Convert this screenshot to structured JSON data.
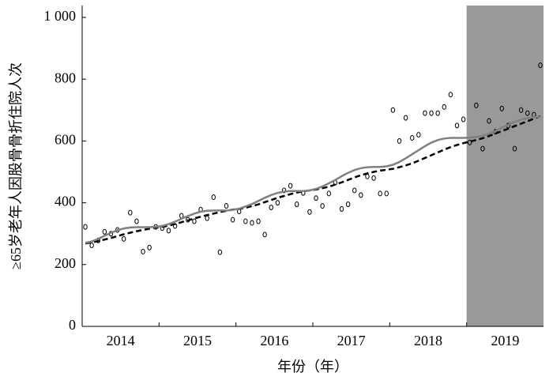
{
  "chart_data": {
    "type": "line",
    "ylabel": "≥65岁老年人因股骨骨折住院人次",
    "xlabel": "年份（年）",
    "categories": [
      null,
      null,
      null,
      null,
      null,
      null,
      "2014",
      null,
      null,
      null,
      null,
      null,
      null,
      null,
      null,
      null,
      null,
      null,
      "2015",
      null,
      null,
      null,
      null,
      null,
      null,
      null,
      null,
      null,
      null,
      null,
      "2016",
      null,
      null,
      null,
      null,
      null,
      null,
      null,
      null,
      null,
      null,
      null,
      "2017",
      null,
      null,
      null,
      null,
      null,
      null,
      null,
      null,
      null,
      null,
      null,
      "2018",
      null,
      null,
      null,
      null,
      null,
      null,
      null,
      null,
      null,
      null,
      null,
      "2019",
      null,
      null,
      null,
      null,
      null
    ],
    "ylim": [
      0,
      1000
    ],
    "yticks": [
      0,
      200,
      400,
      600,
      800,
      {
        "value": 1000,
        "label": "1 000"
      }
    ],
    "shaded_range": [
      60,
      71
    ],
    "shade_color": "#999999",
    "series": [
      {
        "style": "markers",
        "color": "#000000",
        "values": [
          322,
          262,
          278,
          306,
          300,
          312,
          283,
          368,
          340,
          242,
          255,
          322,
          318,
          310,
          325,
          358,
          345,
          340,
          378,
          350,
          418,
          240,
          390,
          345,
          372,
          340,
          335,
          340,
          297,
          385,
          400,
          440,
          455,
          395,
          432,
          370,
          415,
          390,
          430,
          465,
          380,
          395,
          440,
          425,
          485,
          480,
          430,
          430,
          700,
          600,
          675,
          610,
          620,
          690,
          690,
          690,
          710,
          750,
          650,
          670,
          595,
          715,
          575,
          665,
          630,
          705,
          650,
          575,
          700,
          690,
          685,
          845
        ]
      },
      {
        "style": "dashed",
        "color": "#000000",
        "values": [
          268,
          272,
          276,
          281,
          286,
          292,
          298,
          303,
          308,
          312,
          316,
          320,
          322,
          326,
          331,
          337,
          343,
          349,
          355,
          360,
          365,
          370,
          374,
          378,
          380,
          384,
          389,
          395,
          402,
          409,
          416,
          422,
          428,
          433,
          437,
          440,
          443,
          447,
          452,
          459,
          466,
          474,
          482,
          489,
          495,
          500,
          504,
          507,
          510,
          515,
          521,
          528,
          536,
          545,
          554,
          563,
          572,
          580,
          587,
          593,
          598,
          603,
          609,
          616,
          624,
          632,
          640,
          648,
          656,
          664,
          672,
          680
        ]
      },
      {
        "style": "solid",
        "color": "#808080",
        "values": [
          270,
          275,
          283,
          293,
          303,
          311,
          317,
          320,
          321,
          321,
          321,
          322,
          325,
          331,
          339,
          348,
          357,
          365,
          371,
          374,
          375,
          375,
          375,
          377,
          381,
          388,
          396,
          406,
          416,
          425,
          432,
          436,
          438,
          438,
          438,
          440,
          445,
          453,
          463,
          474,
          486,
          497,
          506,
          512,
          515,
          516,
          516,
          518,
          523,
          532,
          544,
          557,
          570,
          583,
          595,
          603,
          608,
          610,
          610,
          610,
          611,
          613,
          617,
          624,
          633,
          643,
          653,
          662,
          669,
          674,
          677,
          678
        ]
      }
    ]
  }
}
